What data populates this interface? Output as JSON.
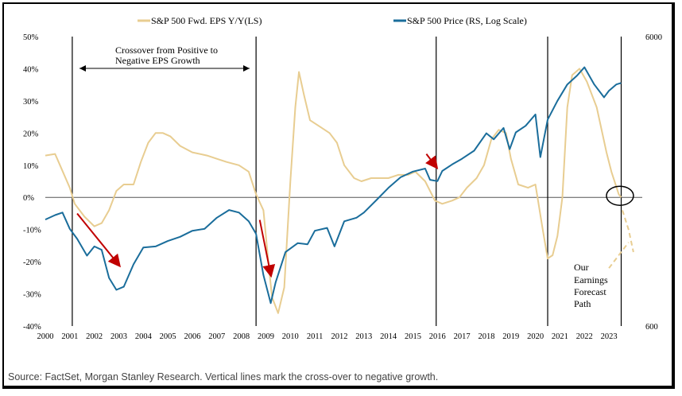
{
  "chart_data": {
    "type": "line",
    "title": "",
    "source_note": "Source: FactSet, Morgan Stanley Research. Vertical lines mark the cross-over to negative growth.",
    "x_ticks": [
      "2000",
      "2001",
      "2002",
      "2003",
      "2004",
      "2005",
      "2006",
      "2007",
      "2008",
      "2009",
      "2010",
      "2011",
      "2012",
      "2013",
      "2014",
      "2015",
      "2016",
      "2017",
      "2018",
      "2019",
      "2020",
      "2021",
      "2022",
      "2023"
    ],
    "xlim": [
      2000,
      2024.1
    ],
    "left_axis": {
      "ticks": [
        "50%",
        "40%",
        "30%",
        "20%",
        "10%",
        "0%",
        "-10%",
        "-20%",
        "-30%",
        "-40%"
      ],
      "ylim": [
        -40,
        50
      ],
      "unit": "%"
    },
    "right_axis": {
      "ticks": [
        "6000",
        "600"
      ],
      "scale": "log",
      "ylim": [
        600,
        6000
      ]
    },
    "grid": false,
    "legend_position": "top",
    "vertical_lines_x": [
      2001.1,
      2008.6,
      2015.95,
      2020.5,
      2023.5
    ],
    "series": [
      {
        "name": "S&P 500 Fwd. EPS Y/Y(LS)",
        "color": "#e8cd91",
        "axis": "left",
        "points": [
          [
            2000,
            13
          ],
          [
            2000.4,
            13.5
          ],
          [
            2000.6,
            10
          ],
          [
            2001,
            3
          ],
          [
            2001.2,
            -2
          ],
          [
            2001.6,
            -6
          ],
          [
            2002.0,
            -9
          ],
          [
            2002.3,
            -8
          ],
          [
            2002.6,
            -4
          ],
          [
            2002.9,
            2
          ],
          [
            2003.2,
            4
          ],
          [
            2003.6,
            4
          ],
          [
            2003.9,
            11
          ],
          [
            2004.2,
            17
          ],
          [
            2004.5,
            20
          ],
          [
            2004.8,
            20
          ],
          [
            2005.1,
            19
          ],
          [
            2005.5,
            16
          ],
          [
            2006.0,
            14
          ],
          [
            2006.6,
            13
          ],
          [
            2007.0,
            12
          ],
          [
            2007.4,
            11
          ],
          [
            2007.9,
            10
          ],
          [
            2008.3,
            8
          ],
          [
            2008.6,
            1
          ],
          [
            2008.9,
            -4
          ],
          [
            2009.1,
            -20
          ],
          [
            2009.25,
            -31
          ],
          [
            2009.5,
            -36
          ],
          [
            2009.75,
            -28
          ],
          [
            2010.0,
            5
          ],
          [
            2010.2,
            28
          ],
          [
            2010.35,
            39
          ],
          [
            2010.55,
            32
          ],
          [
            2010.8,
            24
          ],
          [
            2011.2,
            22
          ],
          [
            2011.6,
            20
          ],
          [
            2011.9,
            17
          ],
          [
            2012.2,
            10
          ],
          [
            2012.6,
            6
          ],
          [
            2012.9,
            5
          ],
          [
            2013.3,
            6
          ],
          [
            2013.6,
            6
          ],
          [
            2014.0,
            6
          ],
          [
            2014.4,
            7
          ],
          [
            2014.8,
            7
          ],
          [
            2015.1,
            8
          ],
          [
            2015.5,
            5
          ],
          [
            2015.9,
            -1
          ],
          [
            2016.2,
            -2
          ],
          [
            2016.6,
            -1
          ],
          [
            2016.9,
            0
          ],
          [
            2017.2,
            3
          ],
          [
            2017.6,
            6
          ],
          [
            2017.9,
            10
          ],
          [
            2018.2,
            18
          ],
          [
            2018.5,
            21
          ],
          [
            2018.8,
            20
          ],
          [
            2019.0,
            12
          ],
          [
            2019.3,
            4
          ],
          [
            2019.7,
            3
          ],
          [
            2020.0,
            4
          ],
          [
            2020.3,
            -10
          ],
          [
            2020.5,
            -19
          ],
          [
            2020.7,
            -18
          ],
          [
            2020.9,
            -12
          ],
          [
            2021.1,
            0
          ],
          [
            2021.3,
            28
          ],
          [
            2021.5,
            38
          ],
          [
            2021.8,
            40
          ],
          [
            2022.1,
            36
          ],
          [
            2022.5,
            28
          ],
          [
            2022.9,
            14
          ],
          [
            2023.1,
            8
          ],
          [
            2023.4,
            1
          ],
          [
            2023.5,
            0
          ]
        ]
      },
      {
        "name": "S&P 500 Price (RS, Log Scale)",
        "color": "#1a6d9b",
        "axis": "right",
        "points": [
          [
            2000,
            1400
          ],
          [
            2000.4,
            1450
          ],
          [
            2000.7,
            1480
          ],
          [
            2001.0,
            1300
          ],
          [
            2001.3,
            1200
          ],
          [
            2001.7,
            1050
          ],
          [
            2002.0,
            1130
          ],
          [
            2002.3,
            1100
          ],
          [
            2002.6,
            880
          ],
          [
            2002.9,
            800
          ],
          [
            2003.2,
            820
          ],
          [
            2003.6,
            980
          ],
          [
            2004.0,
            1120
          ],
          [
            2004.5,
            1130
          ],
          [
            2005.0,
            1180
          ],
          [
            2005.5,
            1220
          ],
          [
            2006.0,
            1280
          ],
          [
            2006.5,
            1300
          ],
          [
            2007.0,
            1420
          ],
          [
            2007.5,
            1510
          ],
          [
            2007.9,
            1480
          ],
          [
            2008.3,
            1380
          ],
          [
            2008.6,
            1250
          ],
          [
            2008.9,
            900
          ],
          [
            2009.2,
            720
          ],
          [
            2009.4,
            850
          ],
          [
            2009.8,
            1080
          ],
          [
            2010.3,
            1160
          ],
          [
            2010.7,
            1150
          ],
          [
            2011.0,
            1280
          ],
          [
            2011.5,
            1310
          ],
          [
            2011.8,
            1130
          ],
          [
            2012.2,
            1380
          ],
          [
            2012.7,
            1420
          ],
          [
            2013.0,
            1480
          ],
          [
            2013.5,
            1630
          ],
          [
            2014.0,
            1800
          ],
          [
            2014.5,
            1960
          ],
          [
            2015.0,
            2050
          ],
          [
            2015.5,
            2100
          ],
          [
            2015.7,
            1920
          ],
          [
            2016.0,
            1900
          ],
          [
            2016.2,
            2060
          ],
          [
            2016.6,
            2170
          ],
          [
            2017.0,
            2270
          ],
          [
            2017.5,
            2420
          ],
          [
            2018.0,
            2780
          ],
          [
            2018.3,
            2650
          ],
          [
            2018.7,
            2900
          ],
          [
            2018.95,
            2450
          ],
          [
            2019.2,
            2800
          ],
          [
            2019.6,
            2950
          ],
          [
            2020.0,
            3230
          ],
          [
            2020.2,
            2300
          ],
          [
            2020.5,
            3100
          ],
          [
            2020.9,
            3600
          ],
          [
            2021.3,
            4100
          ],
          [
            2021.7,
            4400
          ],
          [
            2022.0,
            4700
          ],
          [
            2022.4,
            4100
          ],
          [
            2022.8,
            3700
          ],
          [
            2023.0,
            3900
          ],
          [
            2023.3,
            4100
          ],
          [
            2023.5,
            4150
          ]
        ]
      },
      {
        "name": "Our Earnings Forecast Path",
        "color": "#e8cd91",
        "axis": "left",
        "dashed": true,
        "points": [
          [
            2023.55,
            -4
          ],
          [
            2023.8,
            -10
          ],
          [
            2024.0,
            -17
          ]
        ],
        "points_b": [
          [
            2023.0,
            -22
          ],
          [
            2023.5,
            -17
          ],
          [
            2023.8,
            -14
          ]
        ]
      }
    ],
    "annotations": {
      "crossover_label": [
        "Crossover from Positive to",
        "Negative EPS Growth"
      ],
      "forecast_label": [
        "Our",
        "Earnings",
        "Forecast",
        "Path"
      ],
      "red_arrows": [
        {
          "from": [
            2001.3,
            -5
          ],
          "to": [
            2003.0,
            -21
          ]
        },
        {
          "from": [
            2008.75,
            -7
          ],
          "to": [
            2009.2,
            -24
          ]
        },
        {
          "from": [
            2015.55,
            13.5
          ],
          "to": [
            2015.95,
            9.5
          ]
        }
      ]
    }
  }
}
